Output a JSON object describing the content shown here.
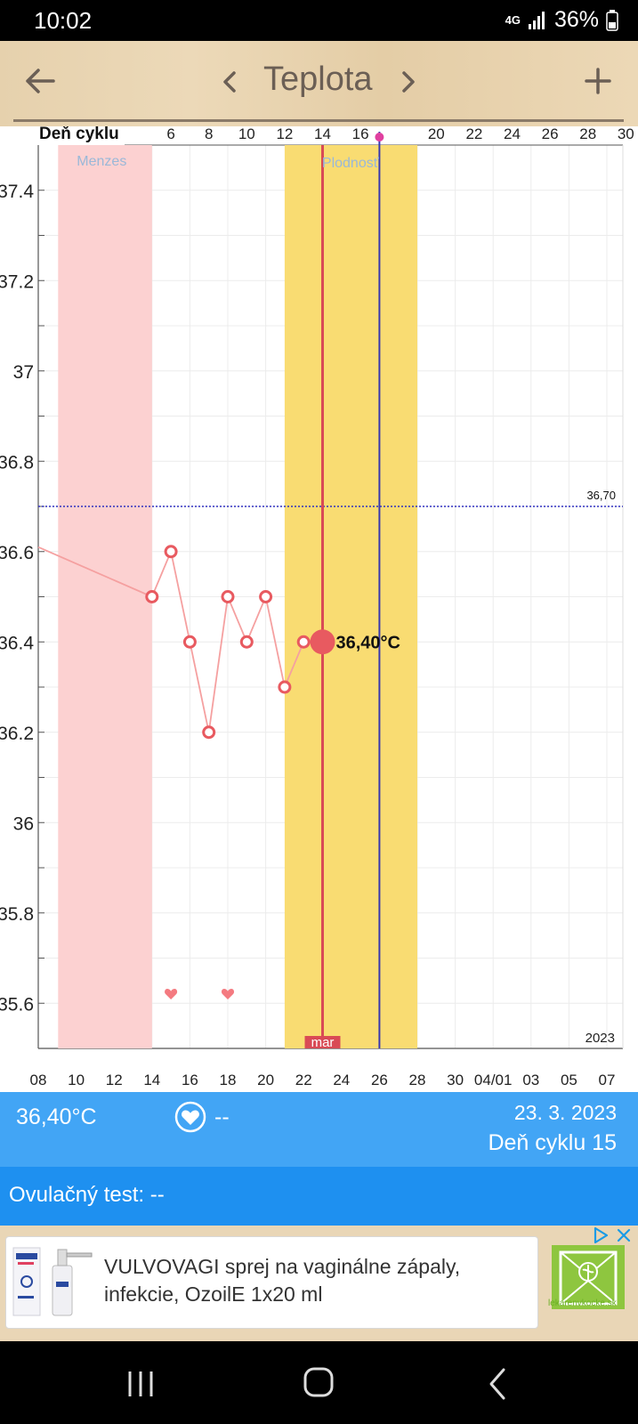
{
  "status": {
    "time": "10:02",
    "network": "4G",
    "battery": "36%"
  },
  "toolbar": {
    "title": "Teplota",
    "back_icon": "arrow-left-icon",
    "prev_icon": "chevron-left-icon",
    "next_icon": "chevron-right-icon",
    "add_icon": "plus-icon"
  },
  "chart_labels": {
    "cycle_day_label": "Deň cyklu",
    "menses_label": "Menzes",
    "fertility_label": "Plodnosť",
    "threshold_label": "36,70",
    "current_temp_label": "36,40°C",
    "month_label": "mar",
    "year_label": "2023"
  },
  "chart_data": {
    "type": "line",
    "title": "",
    "xlabel": "",
    "ylabel": "",
    "ylim": [
      35.5,
      37.5
    ],
    "y_ticks": [
      "35.6",
      "35.8",
      "36",
      "36.2",
      "36.4",
      "36.6",
      "36.8",
      "37",
      "37.2",
      "37.4"
    ],
    "cycle_day_ticks": [
      "6",
      "8",
      "10",
      "12",
      "14",
      "16",
      "20",
      "22",
      "24",
      "26",
      "28",
      "30"
    ],
    "date_ticks": [
      "08",
      "10",
      "12",
      "14",
      "16",
      "18",
      "20",
      "22",
      "24",
      "26",
      "28",
      "30",
      "04/01",
      "03",
      "05",
      "07"
    ],
    "series": [
      {
        "values": [
          {
            "date": "2023-03-08",
            "temp": 36.61,
            "marker": false
          },
          {
            "date": "2023-03-14",
            "temp": 36.5,
            "marker": true
          },
          {
            "date": "2023-03-15",
            "temp": 36.6,
            "marker": true
          },
          {
            "date": "2023-03-16",
            "temp": 36.4,
            "marker": true
          },
          {
            "date": "2023-03-17",
            "temp": 36.2,
            "marker": true
          },
          {
            "date": "2023-03-18",
            "temp": 36.5,
            "marker": true
          },
          {
            "date": "2023-03-19",
            "temp": 36.4,
            "marker": true
          },
          {
            "date": "2023-03-20",
            "temp": 36.5,
            "marker": true
          },
          {
            "date": "2023-03-21",
            "temp": 36.3,
            "marker": true
          },
          {
            "date": "2023-03-22",
            "temp": 36.4,
            "marker": true
          },
          {
            "date": "2023-03-23",
            "temp": 36.4,
            "marker": "selected"
          }
        ]
      }
    ],
    "threshold": 36.7,
    "menses_range": [
      "2023-03-09",
      "2023-03-14"
    ],
    "fertile_range": [
      "2023-03-21",
      "2023-03-28"
    ],
    "selected_date": "2023-03-23",
    "ovulation_date": "2023-03-26",
    "intercourse_dates": [
      "2023-03-15",
      "2023-03-18"
    ],
    "grid": true,
    "colors": {
      "menses": "#fcd1d1",
      "fertile": "#f9dc72",
      "line": "#f5a0a0",
      "marker": "#e85a60",
      "threshold": "#3030c0",
      "ovulation_line": "#3838b0",
      "selected_line": "#d94a55"
    }
  },
  "info": {
    "temp": "36,40°C",
    "heart_icon": "heart-icon",
    "intercourse": "--",
    "date": "23. 3. 2023",
    "cycle_day": "Deň cyklu 15"
  },
  "ovulation_test": {
    "label": "Ovulačný test: --"
  },
  "ad": {
    "text": "VULVOVAGI sprej na vaginálne zápaly, infekcie, OzoilE 1x20 ml",
    "brand": "lekarenvkocke.sk",
    "product_label": "VULVOVAGI",
    "adchoices_icon": "adchoices-icon",
    "close_icon": "close-icon"
  },
  "navbar": {
    "recents_icon": "recents-icon",
    "home_icon": "home-icon",
    "back_icon": "back-icon"
  },
  "colors": {
    "info_bar": "#42a5f5",
    "ov_bar": "#1e90f0",
    "title": "#6b5f55"
  }
}
